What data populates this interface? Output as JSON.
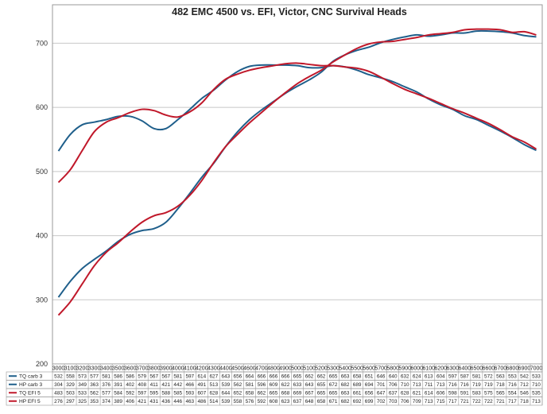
{
  "chart_data": {
    "type": "line",
    "title": "482 EMC 4500 vs. EFI, Victor, CNC Survival Heads",
    "xlabel": "",
    "ylabel": "",
    "ylim": [
      200,
      760
    ],
    "yticks": [
      200,
      300,
      400,
      500,
      600,
      700
    ],
    "grid": true,
    "legend": "data-table-bottom",
    "x": [
      3000,
      3100,
      3200,
      3300,
      3400,
      3500,
      3600,
      3700,
      3800,
      3900,
      4000,
      4100,
      4200,
      4300,
      4400,
      4500,
      4600,
      4700,
      4800,
      4900,
      5000,
      5100,
      5200,
      5300,
      5400,
      5500,
      5600,
      5700,
      5800,
      5900,
      6000,
      6100,
      6200,
      6300,
      6400,
      6500,
      6600,
      6700,
      6800,
      6900,
      7000
    ],
    "series": [
      {
        "name": "TQ carb 3",
        "color": "#1f5f8b",
        "values": [
          532,
          558,
          573,
          577,
          581,
          586,
          586,
          579,
          567,
          567,
          581,
          597,
          614,
          627,
          643,
          656,
          664,
          666,
          666,
          666,
          665,
          662,
          662,
          665,
          663,
          658,
          651,
          646,
          640,
          632,
          624,
          613,
          604,
          597,
          587,
          581,
          572,
          563,
          553,
          542,
          533
        ]
      },
      {
        "name": "HP carb 3",
        "color": "#1f5f8b",
        "values": [
          304,
          329,
          349,
          363,
          376,
          391,
          402,
          408,
          411,
          421,
          442,
          466,
          491,
          513,
          539,
          562,
          581,
          596,
          609,
          622,
          633,
          643,
          655,
          672,
          682,
          689,
          694,
          701,
          706,
          710,
          713,
          711,
          713,
          716,
          716,
          719,
          719,
          718,
          716,
          712,
          710
        ]
      },
      {
        "name": "TQ EFI 5",
        "color": "#c0182a",
        "values": [
          483,
          503,
          533,
          562,
          577,
          584,
          592,
          597,
          595,
          588,
          585,
          593,
          607,
          628,
          644,
          652,
          658,
          662,
          665,
          668,
          669,
          667,
          665,
          665,
          663,
          661,
          656,
          647,
          637,
          628,
          621,
          614,
          606,
          598,
          591,
          583,
          575,
          565,
          554,
          546,
          535
        ]
      },
      {
        "name": "HP EFI 5",
        "color": "#c0182a",
        "values": [
          276,
          297,
          325,
          353,
          374,
          389,
          406,
          421,
          431,
          436,
          446,
          463,
          486,
          514,
          539,
          558,
          576,
          592,
          608,
          623,
          637,
          648,
          658,
          671,
          682,
          692,
          699,
          702,
          703,
          706,
          709,
          713,
          715,
          717,
          721,
          722,
          722,
          721,
          717,
          718,
          713
        ]
      }
    ]
  }
}
